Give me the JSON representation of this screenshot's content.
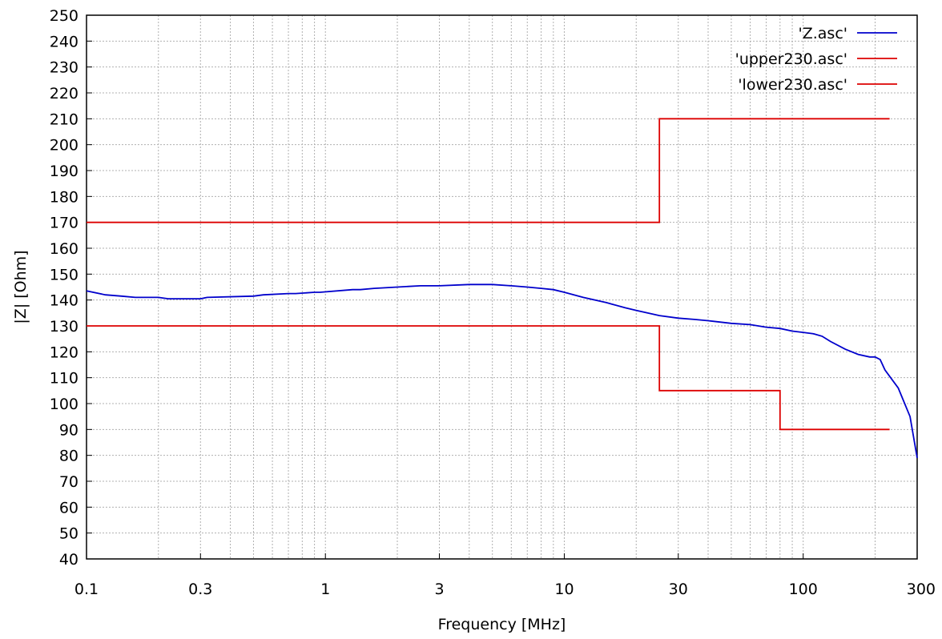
{
  "chart_data": {
    "type": "line",
    "title": "",
    "xlabel": "Frequency [MHz]",
    "ylabel": "|Z| [Ohm]",
    "xscale": "log",
    "xlim": [
      0.1,
      300
    ],
    "ylim": [
      40,
      250
    ],
    "grid": true,
    "legend_position": "top-right",
    "x_ticks": [
      {
        "value": 0.1,
        "label": "0.1"
      },
      {
        "value": 0.3,
        "label": "0.3"
      },
      {
        "value": 1,
        "label": "1"
      },
      {
        "value": 3,
        "label": "3"
      },
      {
        "value": 10,
        "label": "10"
      },
      {
        "value": 30,
        "label": "30"
      },
      {
        "value": 100,
        "label": "100"
      },
      {
        "value": 300,
        "label": "300"
      }
    ],
    "y_ticks": [
      40,
      50,
      60,
      70,
      80,
      90,
      100,
      110,
      120,
      130,
      140,
      150,
      160,
      170,
      180,
      190,
      200,
      210,
      220,
      230,
      240,
      250
    ],
    "series": [
      {
        "name": "'Z.asc'",
        "color": "#0000cc",
        "x": [
          0.1,
          0.12,
          0.14,
          0.16,
          0.2,
          0.22,
          0.3,
          0.32,
          0.5,
          0.55,
          0.7,
          0.75,
          0.9,
          0.95,
          1.3,
          1.4,
          1.6,
          2,
          2.5,
          3,
          4,
          5,
          6,
          7,
          8,
          9,
          10,
          12,
          15,
          18,
          20,
          25,
          30,
          35,
          40,
          50,
          60,
          70,
          80,
          90,
          100,
          110,
          120,
          130,
          150,
          170,
          190,
          200,
          210,
          220,
          250,
          280,
          300
        ],
        "y": [
          143.5,
          142,
          141.5,
          141,
          141,
          140.5,
          140.5,
          141,
          141.5,
          142,
          142.5,
          142.5,
          143,
          143,
          144,
          144,
          144.5,
          145,
          145.5,
          145.5,
          146,
          146,
          145.5,
          145,
          144.5,
          144,
          143,
          141,
          139,
          137,
          136,
          134,
          133,
          132.5,
          132,
          131,
          130.5,
          129.5,
          129,
          128,
          127.5,
          127,
          126,
          124,
          121,
          119,
          118,
          118,
          117,
          113,
          106,
          95,
          79
        ]
      },
      {
        "name": "'upper230.asc'",
        "color": "#dd0000",
        "x": [
          0.1,
          25,
          25,
          230
        ],
        "y": [
          170,
          170,
          210,
          210
        ]
      },
      {
        "name": "'lower230.asc'",
        "color": "#dd0000",
        "x": [
          0.1,
          25,
          25,
          80,
          80,
          230
        ],
        "y": [
          130,
          130,
          105,
          105,
          90,
          90
        ]
      }
    ]
  }
}
